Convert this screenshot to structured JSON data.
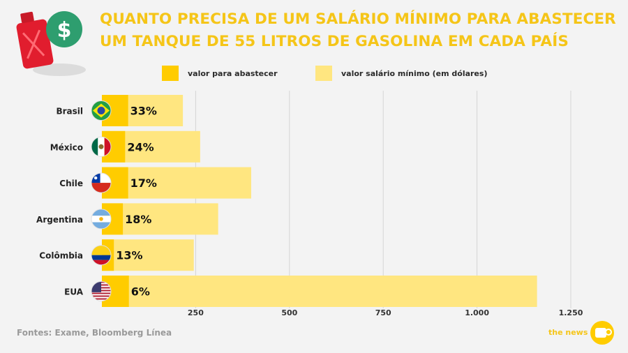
{
  "header": {
    "title_line1": "QUANTO PRECISA DE UM SALÁRIO MÍNIMO PARA ABASTECER",
    "title_line2": "UM TANQUE DE 55 LITROS DE GASOLINA EM CADA PAÍS"
  },
  "legend": {
    "fuel_label": "valor para abastecer",
    "wage_label": "valor salário mínimo (em dólares)"
  },
  "footer": {
    "source": "Fontes: Exame, Bloomberg Línea",
    "brand": "the news"
  },
  "colors": {
    "fuel": "#ffcc00",
    "wage": "#ffe680",
    "title": "#f5c518"
  },
  "chart_data": {
    "type": "bar",
    "orientation": "horizontal",
    "categories": [
      "Brasil",
      "México",
      "Chile",
      "Argentina",
      "Colômbia",
      "EUA"
    ],
    "series": [
      {
        "name": "valor para abastecer",
        "values": [
          70,
          62,
          70,
          56,
          32,
          72
        ]
      },
      {
        "name": "valor salário mínimo (em dólares)",
        "values": [
          216,
          262,
          398,
          310,
          245,
          1160
        ]
      }
    ],
    "data_labels": [
      "33%",
      "24%",
      "17%",
      "18%",
      "13%",
      "6%"
    ],
    "flags": [
      "brazil-flag-icon",
      "mexico-flag-icon",
      "chile-flag-icon",
      "argentina-flag-icon",
      "colombia-flag-icon",
      "usa-flag-icon"
    ],
    "xticks": [
      250,
      500,
      750,
      1000,
      1250
    ],
    "xtick_labels": [
      "250",
      "500",
      "750",
      "1.000",
      "1.250"
    ],
    "xlim": [
      0,
      1250
    ],
    "grid": "vertical"
  }
}
